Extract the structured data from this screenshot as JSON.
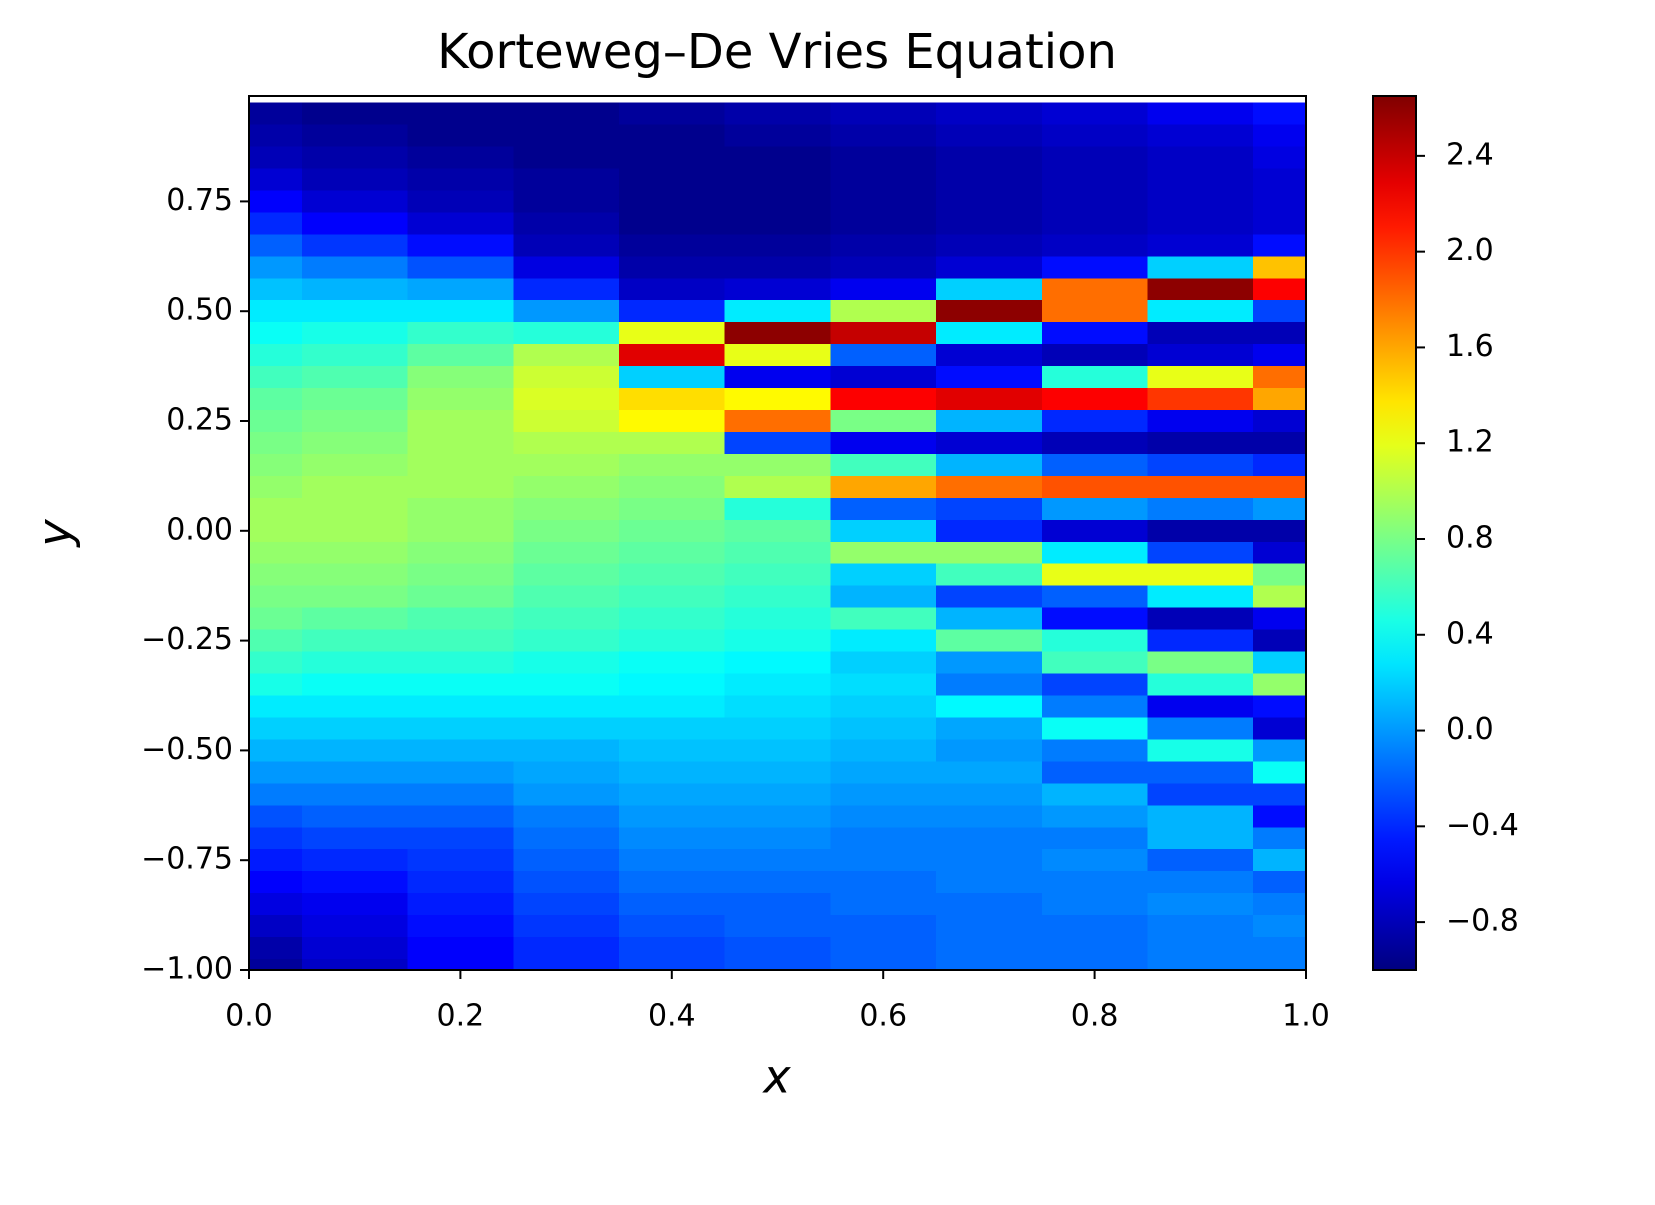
{
  "chart_data": {
    "type": "heatmap",
    "title": "Korteweg–De Vries Equation",
    "xlabel": "x",
    "ylabel": "y",
    "xlim": [
      0,
      1
    ],
    "ylim": [
      -1,
      0.99
    ],
    "xticks": [
      {
        "value": 0,
        "label": "0.0"
      },
      0.2,
      0.4,
      0.6,
      0.8,
      {
        "value": 1,
        "label": "1.0"
      }
    ],
    "yticks": [
      {
        "value": -1,
        "label": "−1.00"
      },
      {
        "value": -0.75,
        "label": "−0.75"
      },
      {
        "value": -0.5,
        "label": "−0.50"
      },
      {
        "value": -0.25,
        "label": "−0.25"
      },
      {
        "value": 0,
        "label": "0.00"
      },
      0.25,
      {
        "value": 0.5,
        "label": "0.50"
      },
      0.75
    ],
    "colormap": "jet",
    "clim": [
      -1.0,
      2.65
    ],
    "cticks": [
      {
        "value": -0.8,
        "label": "−0.8"
      },
      {
        "value": -0.4,
        "label": "−0.4"
      },
      {
        "value": 0,
        "label": "0.0"
      },
      0.4,
      0.8,
      1.2,
      1.6,
      {
        "value": 2,
        "label": "2.0"
      },
      2.4
    ],
    "x": [
      0,
      0.1,
      0.2,
      0.3,
      0.4,
      0.5,
      0.6,
      0.7,
      0.8,
      0.9,
      1.0
    ],
    "y": [
      0.95,
      0.9,
      0.85,
      0.8,
      0.75,
      0.7,
      0.65,
      0.6,
      0.55,
      0.5,
      0.45,
      0.4,
      0.35,
      0.3,
      0.25,
      0.2,
      0.15,
      0.1,
      0.05,
      0,
      -0.05,
      -0.1,
      -0.15,
      -0.2,
      -0.25,
      -0.3,
      -0.35,
      -0.4,
      -0.45,
      -0.5,
      -0.55,
      -0.6,
      -0.65,
      -0.7,
      -0.75,
      -0.8,
      -0.85,
      -0.9,
      -0.95,
      -1.0
    ],
    "z": [
      [
        -0.9,
        -0.85,
        -0.8,
        -0.7,
        -0.55,
        -0.4,
        -0.2,
        0,
        0.15,
        0.3,
        0.4,
        0.5,
        0.6,
        0.7,
        0.75,
        0.8,
        0.85,
        0.9,
        0.95,
        0.95,
        0.9,
        0.85,
        0.8,
        0.75,
        0.65,
        0.55,
        0.45,
        0.3,
        0.2,
        0.1,
        0,
        -0.1,
        -0.25,
        -0.35,
        -0.45,
        -0.55,
        -0.65,
        -0.75,
        -0.85,
        -0.9
      ],
      [
        -0.95,
        -0.9,
        -0.85,
        -0.8,
        -0.7,
        -0.55,
        -0.35,
        -0.1,
        0.1,
        0.3,
        0.45,
        0.55,
        0.65,
        0.75,
        0.8,
        0.85,
        0.9,
        0.95,
        0.95,
        0.95,
        0.9,
        0.85,
        0.8,
        0.7,
        0.6,
        0.5,
        0.4,
        0.3,
        0.2,
        0.1,
        0,
        -0.1,
        -0.2,
        -0.3,
        -0.4,
        -0.5,
        -0.6,
        -0.65,
        -0.7,
        -0.75
      ],
      [
        -0.95,
        -0.95,
        -0.9,
        -0.85,
        -0.8,
        -0.7,
        -0.5,
        -0.25,
        0.05,
        0.3,
        0.55,
        0.7,
        0.85,
        0.9,
        0.95,
        0.95,
        0.95,
        0.95,
        0.9,
        0.9,
        0.85,
        0.8,
        0.75,
        0.65,
        0.6,
        0.5,
        0.4,
        0.3,
        0.2,
        0.1,
        0,
        -0.1,
        -0.2,
        -0.3,
        -0.35,
        -0.4,
        -0.45,
        -0.5,
        -0.55,
        -0.55
      ],
      [
        -0.95,
        -0.95,
        -0.95,
        -0.9,
        -0.9,
        -0.85,
        -0.8,
        -0.65,
        -0.4,
        0,
        0.5,
        1.0,
        1.1,
        1.15,
        1.1,
        1.0,
        0.95,
        0.9,
        0.85,
        0.8,
        0.75,
        0.7,
        0.65,
        0.6,
        0.55,
        0.45,
        0.4,
        0.3,
        0.2,
        0.1,
        0.05,
        0,
        -0.1,
        -0.15,
        -0.2,
        -0.25,
        -0.3,
        -0.35,
        -0.4,
        -0.4
      ],
      [
        -0.9,
        -0.95,
        -0.95,
        -0.95,
        -0.95,
        -0.95,
        -0.9,
        -0.85,
        -0.75,
        -0.4,
        1.2,
        2.3,
        0.2,
        1.4,
        1.3,
        1.0,
        0.9,
        0.85,
        0.8,
        0.75,
        0.7,
        0.65,
        0.6,
        0.55,
        0.5,
        0.4,
        0.35,
        0.3,
        0.2,
        0.15,
        0.1,
        0.05,
        0,
        -0.05,
        -0.1,
        -0.15,
        -0.2,
        -0.25,
        -0.3,
        -0.3
      ],
      [
        -0.85,
        -0.9,
        -0.95,
        -0.95,
        -0.95,
        -0.95,
        -0.9,
        -0.85,
        -0.7,
        0.3,
        2.6,
        1.2,
        -0.6,
        1.3,
        1.8,
        -0.3,
        0.9,
        1.0,
        0.5,
        0.7,
        0.65,
        0.6,
        0.55,
        0.5,
        0.45,
        0.35,
        0.3,
        0.25,
        0.2,
        0.15,
        0.1,
        0.05,
        0,
        -0.05,
        -0.1,
        -0.15,
        -0.2,
        -0.2,
        -0.25,
        -0.25
      ],
      [
        -0.8,
        -0.85,
        -0.9,
        -0.9,
        -0.9,
        -0.9,
        -0.85,
        -0.8,
        -0.6,
        1.0,
        2.4,
        -0.2,
        -0.7,
        2.2,
        0.8,
        -0.6,
        0.6,
        1.6,
        -0.2,
        0.2,
        0.9,
        0.2,
        0.1,
        0.6,
        0.3,
        0.2,
        0.25,
        0.2,
        0.15,
        0.1,
        0.05,
        0,
        -0.05,
        -0.1,
        -0.1,
        -0.15,
        -0.15,
        -0.2,
        -0.2,
        -0.2
      ],
      [
        -0.75,
        -0.8,
        -0.85,
        -0.85,
        -0.85,
        -0.85,
        -0.8,
        -0.7,
        0.2,
        2.6,
        0.3,
        -0.7,
        -0.5,
        2.3,
        0.1,
        -0.7,
        0.1,
        1.8,
        -0.3,
        -0.4,
        0.9,
        0.6,
        -0.3,
        0.1,
        0.7,
        0,
        -0.1,
        0.35,
        0.05,
        0,
        0.05,
        0,
        -0.05,
        -0.1,
        -0.1,
        -0.1,
        -0.15,
        -0.15,
        -0.15,
        -0.15
      ],
      [
        -0.7,
        -0.75,
        -0.8,
        -0.8,
        -0.8,
        -0.8,
        -0.75,
        -0.5,
        1.8,
        1.8,
        -0.5,
        -0.8,
        0.5,
        2.2,
        -0.4,
        -0.8,
        -0.2,
        1.9,
        0,
        -0.7,
        0.3,
        1.2,
        -0.2,
        -0.5,
        0.5,
        0.6,
        -0.3,
        -0.1,
        0.4,
        -0.1,
        -0.2,
        0.1,
        0,
        -0.1,
        -0.05,
        -0.1,
        -0.1,
        -0.15,
        -0.15,
        -0.15
      ],
      [
        -0.6,
        -0.7,
        -0.75,
        -0.75,
        -0.75,
        -0.75,
        -0.7,
        0.2,
        2.6,
        0.3,
        -0.8,
        -0.7,
        1.2,
        2.0,
        -0.6,
        -0.85,
        -0.3,
        1.9,
        -0.1,
        -0.85,
        -0.3,
        1.2,
        0.3,
        -0.8,
        -0.4,
        0.8,
        0.5,
        -0.6,
        -0.1,
        0.45,
        -0.2,
        -0.3,
        0.1,
        0.1,
        -0.2,
        -0.1,
        -0.05,
        -0.1,
        -0.1,
        -0.1
      ],
      [
        -0.5,
        -0.6,
        -0.65,
        -0.7,
        -0.7,
        -0.7,
        -0.5,
        1.5,
        2.2,
        -0.3,
        -0.8,
        -0.6,
        1.8,
        1.6,
        -0.7,
        -0.85,
        -0.4,
        1.9,
        0,
        -0.85,
        -0.7,
        0.8,
        1.0,
        -0.6,
        -0.8,
        0.2,
        0.9,
        -0.5,
        -0.7,
        0,
        0.4,
        -0.3,
        -0.5,
        -0.1,
        0.1,
        -0.2,
        -0.1,
        -0.05,
        -0.1,
        -0.1
      ]
    ]
  }
}
